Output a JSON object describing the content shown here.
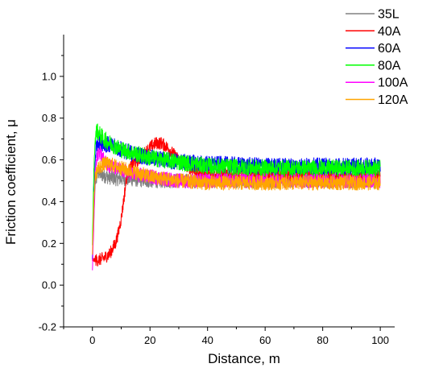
{
  "chart_data": {
    "type": "line",
    "xlabel": "Distance, m",
    "ylabel": "Friction coefficient, μ",
    "xlim": [
      -10,
      105
    ],
    "ylim": [
      -0.2,
      1.2
    ],
    "x_ticks": [
      0,
      20,
      40,
      60,
      80,
      100
    ],
    "y_ticks": [
      -0.2,
      0.0,
      0.2,
      0.4,
      0.6,
      0.8,
      1.0
    ],
    "x_tick_labels": [
      "0",
      "20",
      "40",
      "60",
      "80",
      "100"
    ],
    "y_tick_labels": [
      "-0.2",
      "0.0",
      "0.2",
      "0.4",
      "0.6",
      "0.8",
      "1.0"
    ],
    "legend_position": "top-right",
    "grid": false,
    "series": [
      {
        "name": "35L",
        "color": "#808080",
        "noise": 0.035,
        "x": [
          0,
          0.5,
          1,
          2,
          3,
          5,
          8,
          12,
          20,
          30,
          40,
          60,
          80,
          100
        ],
        "y": [
          0.12,
          0.3,
          0.5,
          0.54,
          0.53,
          0.52,
          0.51,
          0.51,
          0.5,
          0.5,
          0.5,
          0.5,
          0.5,
          0.5
        ]
      },
      {
        "name": "40A",
        "color": "#ff0000",
        "noise": 0.03,
        "x": [
          0,
          2,
          4,
          6,
          8,
          9,
          10,
          11,
          12,
          14,
          16,
          18,
          20,
          22,
          24,
          26,
          28,
          30,
          32,
          34,
          36,
          40,
          50,
          60,
          80,
          100
        ],
        "y": [
          0.12,
          0.12,
          0.13,
          0.15,
          0.2,
          0.25,
          0.32,
          0.42,
          0.53,
          0.58,
          0.6,
          0.63,
          0.66,
          0.68,
          0.68,
          0.66,
          0.63,
          0.6,
          0.58,
          0.56,
          0.54,
          0.53,
          0.53,
          0.53,
          0.52,
          0.52
        ]
      },
      {
        "name": "60A",
        "color": "#0000ff",
        "noise": 0.04,
        "x": [
          0,
          0.5,
          1,
          1.5,
          2,
          4,
          6,
          8,
          10,
          14,
          20,
          30,
          40,
          60,
          80,
          100
        ],
        "y": [
          0.12,
          0.4,
          0.62,
          0.68,
          0.69,
          0.68,
          0.67,
          0.66,
          0.65,
          0.63,
          0.61,
          0.59,
          0.58,
          0.57,
          0.57,
          0.57
        ]
      },
      {
        "name": "80A",
        "color": "#00ff00",
        "noise": 0.04,
        "x": [
          0,
          0.5,
          1,
          1.5,
          2,
          4,
          6,
          10,
          15,
          20,
          30,
          40,
          60,
          80,
          100
        ],
        "y": [
          0.2,
          0.55,
          0.71,
          0.74,
          0.73,
          0.7,
          0.68,
          0.65,
          0.63,
          0.61,
          0.59,
          0.57,
          0.56,
          0.56,
          0.56
        ]
      },
      {
        "name": "100A",
        "color": "#ff00ff",
        "noise": 0.035,
        "x": [
          0,
          0.5,
          1,
          2,
          3,
          4,
          6,
          10,
          15,
          20,
          30,
          40,
          60,
          80,
          100
        ],
        "y": [
          0.07,
          0.3,
          0.55,
          0.64,
          0.63,
          0.6,
          0.57,
          0.55,
          0.53,
          0.52,
          0.5,
          0.5,
          0.5,
          0.5,
          0.5
        ]
      },
      {
        "name": "120A",
        "color": "#ffa500",
        "noise": 0.035,
        "x": [
          0,
          0.5,
          1,
          2,
          3,
          4,
          6,
          8,
          10,
          15,
          20,
          30,
          40,
          60,
          80,
          100
        ],
        "y": [
          0.15,
          0.4,
          0.53,
          0.56,
          0.57,
          0.58,
          0.58,
          0.57,
          0.56,
          0.54,
          0.52,
          0.5,
          0.49,
          0.49,
          0.49,
          0.49
        ]
      }
    ]
  }
}
